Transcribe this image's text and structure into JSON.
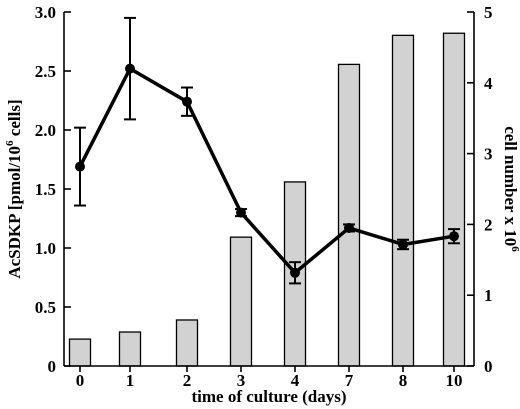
{
  "chart_data": {
    "type": "bar+line",
    "x": {
      "label": "time of culture (days)",
      "categories": [
        "0",
        "1",
        "2",
        "3",
        "4",
        "7",
        "8",
        "10"
      ]
    },
    "y_left": {
      "label_main": "AcSDKP [pmol/10",
      "label_sup": "6",
      "label_end": " cells]",
      "lim": [
        0,
        3.0
      ],
      "ticks": [
        "0",
        "0.5",
        "1.0",
        "1.5",
        "2.0",
        "2.5",
        "3.0"
      ]
    },
    "y_right": {
      "label_main": "cell number x 10",
      "label_sup": "6",
      "lim": [
        0,
        5
      ],
      "ticks": [
        "0",
        "1",
        "2",
        "3",
        "4",
        "5"
      ]
    },
    "bar_series": {
      "axis": "right",
      "color": "#d2d2d2",
      "values": [
        0.38,
        0.48,
        0.65,
        1.82,
        2.6,
        4.26,
        4.67,
        4.7
      ]
    },
    "line_series": {
      "axis": "left",
      "color": "#000000",
      "values": [
        1.69,
        2.52,
        2.24,
        1.3,
        0.79,
        1.17,
        1.03,
        1.1
      ],
      "errors": [
        0.33,
        0.43,
        0.12,
        0.03,
        0.09,
        0.03,
        0.04,
        0.06
      ]
    },
    "grid": false,
    "legend": "none"
  }
}
